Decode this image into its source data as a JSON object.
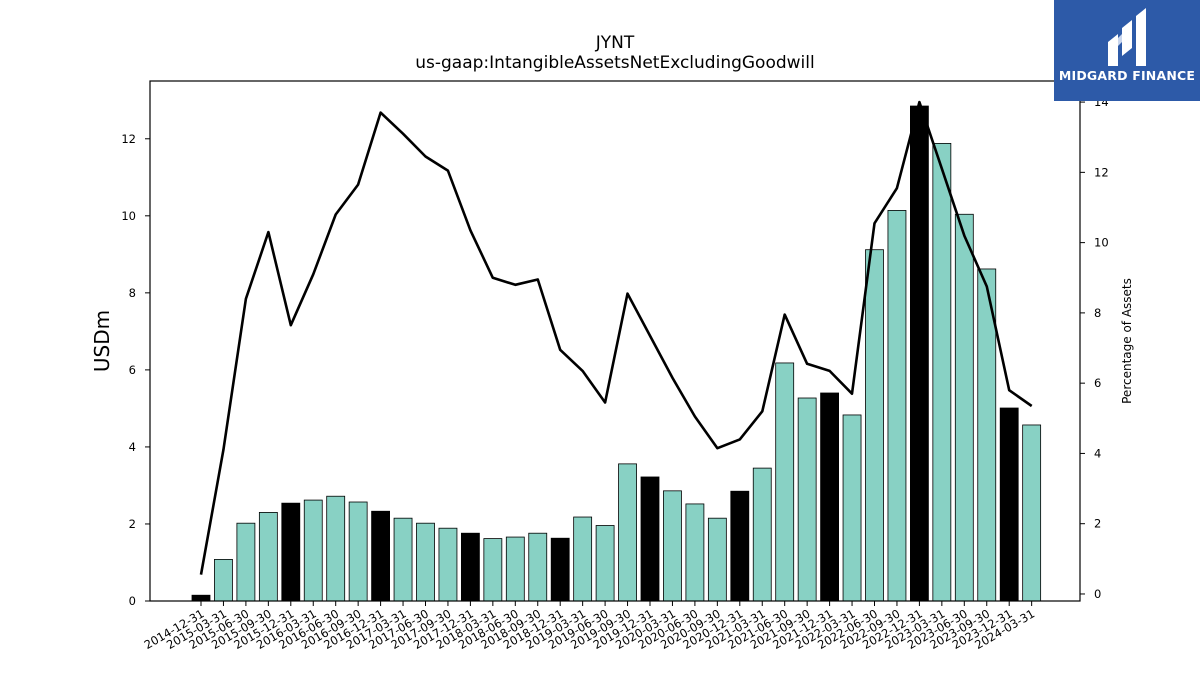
{
  "chart_data": {
    "type": "bar",
    "title": "JYNT",
    "subtitle": "us-gaap:IntangibleAssetsNetExcludingGoodwill",
    "ylabel": "USDm",
    "y2label": "Percentage of Assets",
    "ylim": [
      0,
      13.5
    ],
    "y2lim": [
      -0.2,
      14.6
    ],
    "yticks": [
      0,
      2,
      4,
      6,
      8,
      10,
      12
    ],
    "y2ticks": [
      0,
      2,
      4,
      6,
      8,
      10,
      12,
      14
    ],
    "categories": [
      "2014-12-31",
      "2015-03-31",
      "2015-06-30",
      "2015-09-30",
      "2015-12-31",
      "2016-03-31",
      "2016-06-30",
      "2016-09-30",
      "2016-12-31",
      "2017-03-31",
      "2017-06-30",
      "2017-09-30",
      "2017-12-31",
      "2018-03-31",
      "2018-06-30",
      "2018-09-30",
      "2018-12-31",
      "2019-03-31",
      "2019-06-30",
      "2019-09-30",
      "2019-12-31",
      "2020-03-31",
      "2020-06-30",
      "2020-09-30",
      "2020-12-31",
      "2021-03-31",
      "2021-06-30",
      "2021-09-30",
      "2021-12-31",
      "2022-03-31",
      "2022-06-30",
      "2022-09-30",
      "2022-12-31",
      "2023-03-31",
      "2023-06-30",
      "2023-09-30",
      "2023-12-31",
      "2024-03-31"
    ],
    "series": [
      {
        "kind": "bar",
        "values": [
          0.15,
          1.08,
          2.02,
          2.3,
          2.54,
          2.62,
          2.72,
          2.57,
          2.33,
          2.15,
          2.02,
          1.89,
          1.76,
          1.62,
          1.66,
          1.76,
          1.63,
          2.18,
          1.96,
          3.56,
          3.22,
          2.86,
          2.52,
          2.15,
          2.85,
          3.45,
          6.18,
          5.27,
          5.4,
          4.83,
          9.12,
          10.14,
          12.85,
          11.88,
          10.04,
          8.62,
          5.01,
          4.57
        ],
        "highlight": [
          true,
          false,
          false,
          false,
          true,
          false,
          false,
          false,
          true,
          false,
          false,
          false,
          true,
          false,
          false,
          false,
          true,
          false,
          false,
          false,
          true,
          false,
          false,
          false,
          true,
          false,
          false,
          false,
          true,
          false,
          false,
          false,
          true,
          false,
          false,
          false,
          true,
          false
        ]
      },
      {
        "kind": "line",
        "axis": "right",
        "values": [
          0.55,
          4.1,
          8.4,
          10.3,
          7.65,
          9.1,
          10.8,
          11.65,
          13.7,
          13.1,
          12.45,
          12.05,
          10.35,
          9.0,
          8.8,
          8.95,
          6.95,
          6.35,
          5.45,
          8.55,
          7.35,
          6.15,
          5.05,
          4.15,
          4.4,
          5.2,
          7.95,
          6.55,
          6.35,
          5.7,
          10.55,
          11.55,
          14.0,
          12.1,
          10.2,
          8.75,
          5.8,
          5.35
        ]
      }
    ],
    "colors": {
      "bar": "#88d1c4",
      "highlight": "#000000",
      "line": "#000000"
    }
  },
  "logo": {
    "text": "MIDGARD FINANCE",
    "background": "#2d5aa8"
  }
}
